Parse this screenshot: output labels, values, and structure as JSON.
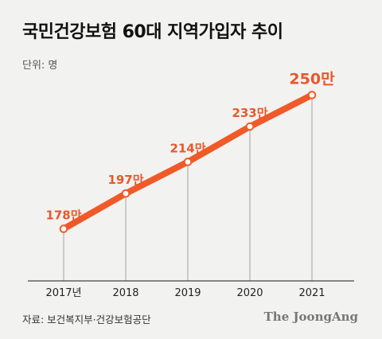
{
  "title": "국민건강보험 60대 지역가입자 추이",
  "unit": "단위: 명",
  "source": "자료: 보건복지부·건강보험공단",
  "brand": "The JoongAng",
  "colors": {
    "line": "#f05a28",
    "label": "#e8582a",
    "axis": "#444444",
    "drop": "#999999"
  },
  "chart_data": {
    "type": "line",
    "x": [
      "2017년",
      "2018",
      "2019",
      "2020",
      "2021"
    ],
    "series": [
      {
        "values": [
          178,
          197,
          214,
          233,
          250
        ],
        "labels": [
          "178만",
          "197만",
          "214만",
          "233만",
          "250만"
        ]
      }
    ],
    "ylim": [
      150,
      260
    ],
    "grid": false,
    "legend": "none"
  }
}
